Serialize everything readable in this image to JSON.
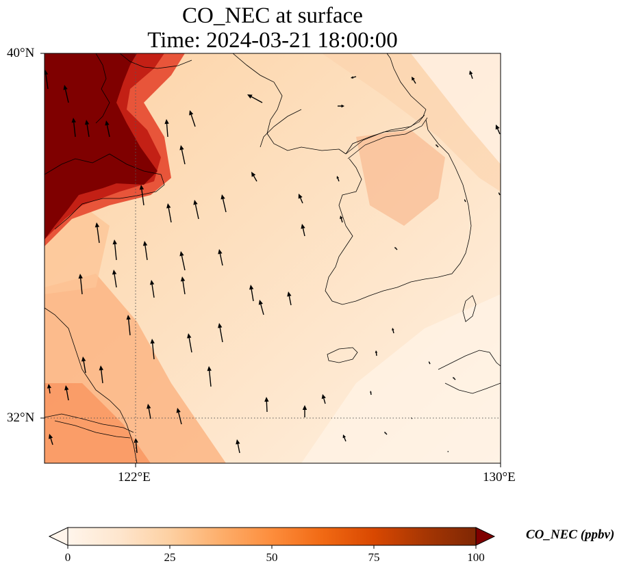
{
  "title": {
    "line1": "CO_NEC at surface",
    "line2": "Time: 2024-03-21 18:00:00"
  },
  "map": {
    "extent": {
      "lon_min": 119.6,
      "lon_max": 130.0,
      "lat_min": 31.0,
      "lat_max": 40.0
    },
    "lat_ticks": [
      {
        "value": 40,
        "label": "40°N"
      },
      {
        "value": 32,
        "label": "32°N"
      }
    ],
    "lon_ticks": [
      {
        "value": 122,
        "label": "122°E"
      },
      {
        "value": 130,
        "label": "130°E"
      }
    ],
    "gridlines": {
      "lon": 122,
      "lat": 32,
      "style": "dotted"
    },
    "coastlines": true,
    "wind_vectors": true
  },
  "colorbar": {
    "label": "CO_NEC (ppbv)",
    "min": 0,
    "max": 100,
    "ticks": [
      {
        "value": 0,
        "label": "0"
      },
      {
        "value": 25,
        "label": "25"
      },
      {
        "value": 50,
        "label": "50"
      },
      {
        "value": 75,
        "label": "75"
      },
      {
        "value": 100,
        "label": "100"
      }
    ],
    "extend": "both",
    "colormap": [
      "#fff5eb",
      "#fee6ce",
      "#fdd0a2",
      "#fdae6b",
      "#fd8d3c",
      "#f16913",
      "#d94801",
      "#a63603",
      "#7f2704"
    ],
    "end_colors": {
      "low": "#ffffff",
      "high": "#7f0000"
    }
  },
  "colors": {
    "ocean_background": "#fde4c6",
    "high_concentration": "#7f0000",
    "coastline": "#000000"
  }
}
